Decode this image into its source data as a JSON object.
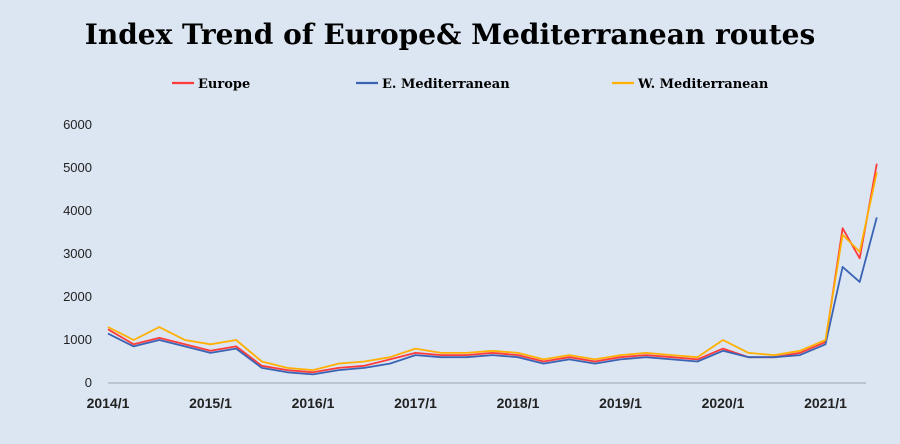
{
  "chart_data": {
    "type": "line",
    "title": "Index Trend of Europe& Mediterranean routes",
    "xlabel": "",
    "ylabel": "",
    "ylim": [
      0,
      6000
    ],
    "yticks": [
      "0",
      "1000",
      "2000",
      "3000",
      "4000",
      "5000",
      "6000"
    ],
    "xticks": [
      "2014/1",
      "2015/1",
      "2016/1",
      "2017/1",
      "2018/1",
      "2019/1",
      "2020/1",
      "2021/1"
    ],
    "grid": false,
    "legend_position": "top",
    "x": [
      "2014/1",
      "2014/4",
      "2014/7",
      "2014/10",
      "2015/1",
      "2015/4",
      "2015/7",
      "2015/10",
      "2016/1",
      "2016/4",
      "2016/7",
      "2016/10",
      "2017/1",
      "2017/4",
      "2017/7",
      "2017/10",
      "2018/1",
      "2018/4",
      "2018/7",
      "2018/10",
      "2019/1",
      "2019/4",
      "2019/7",
      "2019/10",
      "2020/1",
      "2020/4",
      "2020/7",
      "2020/10",
      "2021/1",
      "2021/3",
      "2021/5",
      "2021/7"
    ],
    "series": [
      {
        "name": "Europe",
        "color": "#ff3b3b",
        "values": [
          1250,
          900,
          1050,
          900,
          750,
          850,
          400,
          300,
          250,
          350,
          400,
          550,
          700,
          650,
          650,
          700,
          650,
          500,
          600,
          500,
          600,
          650,
          600,
          550,
          800,
          600,
          600,
          700,
          950,
          3600,
          2900,
          5100
        ]
      },
      {
        "name": "E. Mediterranean",
        "color": "#3a64b3",
        "values": [
          1150,
          850,
          1000,
          850,
          700,
          800,
          350,
          250,
          200,
          300,
          350,
          450,
          650,
          600,
          600,
          650,
          600,
          450,
          550,
          450,
          550,
          600,
          550,
          500,
          750,
          600,
          600,
          650,
          900,
          2700,
          2350,
          3850
        ]
      },
      {
        "name": "W. Mediterranean",
        "color": "#ffb000",
        "values": [
          1300,
          1000,
          1300,
          1000,
          900,
          1000,
          500,
          350,
          300,
          450,
          500,
          600,
          800,
          700,
          700,
          750,
          700,
          550,
          650,
          550,
          650,
          700,
          650,
          600,
          1000,
          700,
          650,
          750,
          1000,
          3450,
          3050,
          4900
        ]
      }
    ]
  }
}
